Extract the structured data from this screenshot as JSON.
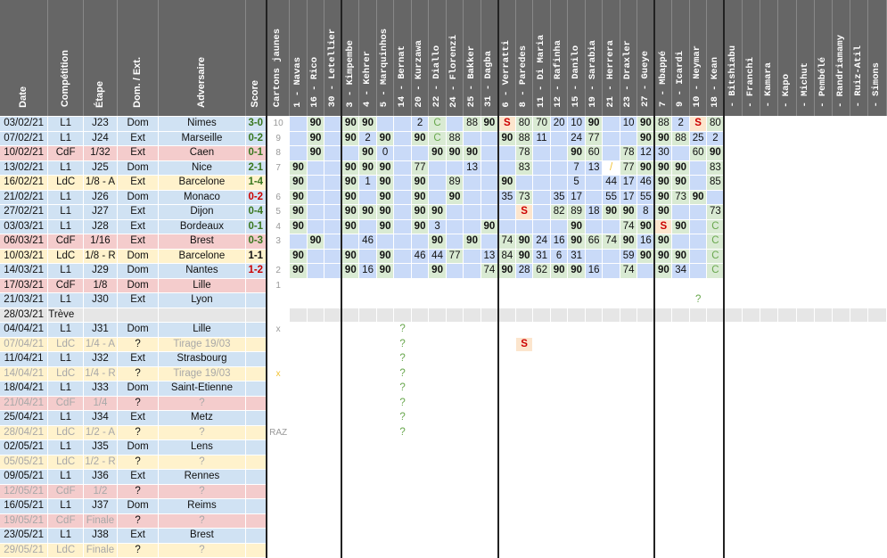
{
  "colors": {
    "header_bg": "#666666",
    "header_text": "#ffffff",
    "row_L1": "#d0e2f3",
    "row_CdF": "#f4cccc",
    "row_LdC": "#fff2cc",
    "row_break": "#e6e6e6",
    "dim_text": "#a8a8a8",
    "score_win": "#38761d",
    "score_loss": "#cc0000",
    "score_draw": "#111111",
    "cell_start": "#d9ead3",
    "cell_sub": "#fce5cd",
    "cell_susp": "#f4cccc",
    "cell_yellow": "#ffff00",
    "cell_blue": "#c9daf8",
    "cell_purple": "#d9d2e9",
    "text_green": "#6aa84f",
    "text_red": "#cc0000",
    "text_orange": "#f1c232",
    "text_muted": "#999999"
  },
  "headers": {
    "date": "Date",
    "competition": "Compétition",
    "stage": "Étape",
    "homeaway": "Dom. / Ext.",
    "opponent": "Adversaire",
    "score": "Score",
    "cards": "Cartons jaunes"
  },
  "players": [
    "1 - Navas",
    "16 - Rico",
    "30 - Letellier",
    "3 - Kimpembe",
    "4 - Kehrer",
    "5 - Marquinhos",
    "14 - Bernat",
    "20 - Kurzawa",
    "22 - Diallo",
    "24 - Florenzi",
    "25 - Bakker",
    "31 - Dagba",
    "6 - Verratti",
    "8 - Paredes",
    "11 - Di Maria",
    "12 - Rafinha",
    "15 - Danilo",
    "19 - Sarabia",
    "21 - Herrera",
    "23 - Draxler",
    "27 - Gueye",
    "7 - Mbappé",
    "9 - Icardi",
    "10 - Neymar",
    "18 - Kean",
    "- Bitshiabu",
    "- Franchi",
    "- Kamara",
    "- Kapo",
    "- Michut",
    "- Pembélé",
    "- Randriamamy",
    "- Ruiz-Atil",
    "- Simons"
  ],
  "matches": [
    {
      "date": "03/02/21",
      "comp": "L1",
      "stage": "J23",
      "ha": "Dom",
      "opp": "Nimes",
      "score": "3-0",
      "res": "W",
      "cards": "10",
      "cells": {
        "1": "90",
        "3": "90",
        "4": "90",
        "7": "2",
        "8": "C",
        "10": "88",
        "11": "90",
        "12": "S",
        "13": "80",
        "14": "70",
        "15": "20",
        "16": "10",
        "17": "90",
        "19": "10",
        "20": "90",
        "21": "88",
        "22": "2",
        "23": "S",
        "24": "80"
      }
    },
    {
      "date": "07/02/21",
      "comp": "L1",
      "stage": "J24",
      "ha": "Ext",
      "opp": "Marseille",
      "score": "0-2",
      "res": "W",
      "cards": "9",
      "cells": {
        "1": "90",
        "3": "90",
        "4": "2",
        "5": "90",
        "7": "90",
        "8": "C",
        "9": "88",
        "12": "90",
        "13": "88",
        "14": "11",
        "16": "24",
        "17": "77",
        "20": "90",
        "21": "90",
        "22": "88",
        "23": "25",
        "24": "2"
      }
    },
    {
      "date": "10/02/21",
      "comp": "CdF",
      "stage": "1/32",
      "ha": "Ext",
      "opp": "Caen",
      "score": "0-1",
      "res": "W",
      "cards": "8",
      "cells": {
        "1": "90",
        "4": "90",
        "5": "0",
        "8": "90",
        "9": "90",
        "10": "90",
        "13": "78",
        "16": "90",
        "17": "60",
        "19": "78",
        "20": "12",
        "21": "30",
        "23": "60",
        "24": "90"
      }
    },
    {
      "date": "13/02/21",
      "comp": "L1",
      "stage": "J25",
      "ha": "Dom",
      "opp": "Nice",
      "score": "2-1",
      "res": "W",
      "cards": "7",
      "cells": {
        "0": "90",
        "3": "90",
        "4": "90",
        "5": "90",
        "7": "77",
        "10": "13",
        "13": "83",
        "16": "7",
        "17": "13",
        "18": "/",
        "19": "77",
        "20": "90",
        "21": "90",
        "22": "90",
        "24": "83"
      }
    },
    {
      "date": "16/02/21",
      "comp": "LdC",
      "stage": "1/8 - A",
      "ha": "Ext",
      "opp": "Barcelone",
      "score": "1-4",
      "res": "W",
      "cards": "",
      "cells": {
        "0": "90",
        "3": "90",
        "4": "1",
        "5": "90",
        "7": "90",
        "9": "89",
        "12": "90",
        "16": "5",
        "18": "44",
        "19": "17",
        "20": "46",
        "21": "90",
        "22": "90",
        "24": "85"
      }
    },
    {
      "date": "21/02/21",
      "comp": "L1",
      "stage": "J26",
      "ha": "Dom",
      "opp": "Monaco",
      "score": "0-2",
      "res": "L",
      "cards": "6",
      "cells": {
        "0": "90",
        "3": "90",
        "5": "90",
        "7": "90",
        "9": "90",
        "12": "35",
        "13": "73",
        "15": "35",
        "16": "17",
        "18": "55",
        "19": "17",
        "20": "55",
        "21": "90",
        "22": "73",
        "23": "90"
      }
    },
    {
      "date": "27/02/21",
      "comp": "L1",
      "stage": "J27",
      "ha": "Ext",
      "opp": "Dijon",
      "score": "0-4",
      "res": "W",
      "cards": "5",
      "cells": {
        "0": "90",
        "3": "90",
        "4": "90",
        "5": "90",
        "7": "90",
        "8": "90",
        "13": "S",
        "15": "82",
        "16": "89",
        "17": "18",
        "18": "90",
        "19": "90",
        "20": "8",
        "21": "90",
        "24": "73"
      }
    },
    {
      "date": "03/03/21",
      "comp": "L1",
      "stage": "J28",
      "ha": "Ext",
      "opp": "Bordeaux",
      "score": "0-1",
      "res": "W",
      "cards": "4",
      "cells": {
        "0": "90",
        "3": "90",
        "5": "90",
        "7": "90",
        "8": "3",
        "11": "90",
        "16": "90",
        "19": "74",
        "20": "90",
        "21": "S",
        "22": "90",
        "24": "C"
      }
    },
    {
      "date": "06/03/21",
      "comp": "CdF",
      "stage": "1/16",
      "ha": "Ext",
      "opp": "Brest",
      "score": "0-3",
      "res": "W",
      "cards": "3",
      "cells": {
        "1": "90",
        "4": "46",
        "8": "90",
        "10": "90",
        "12": "74",
        "13": "90",
        "14": "24",
        "15": "16",
        "16": "90",
        "17": "66",
        "18": "74",
        "19": "90",
        "20": "16",
        "21": "90",
        "24": "C"
      }
    },
    {
      "date": "10/03/21",
      "comp": "LdC",
      "stage": "1/8 - R",
      "ha": "Dom",
      "opp": "Barcelone",
      "score": "1-1",
      "res": "D",
      "cards": "",
      "cells": {
        "0": "90",
        "3": "90",
        "5": "90",
        "7": "46",
        "8": "44",
        "9": "77",
        "11": "13",
        "12": "84",
        "13": "90",
        "14": "31",
        "15": "6",
        "16": "31",
        "19": "59",
        "20": "90",
        "21": "90",
        "22": "90",
        "24": "C"
      }
    },
    {
      "date": "14/03/21",
      "comp": "L1",
      "stage": "J29",
      "ha": "Dom",
      "opp": "Nantes",
      "score": "1-2",
      "res": "L",
      "cards": "2",
      "cells": {
        "0": "90",
        "3": "90",
        "4": "16",
        "5": "90",
        "8": "90",
        "11": "74",
        "12": "90",
        "13": "28",
        "14": "62",
        "15": "90",
        "16": "90",
        "17": "16",
        "19": "74",
        "21": "90",
        "22": "34",
        "24": "C"
      }
    },
    {
      "date": "17/03/21",
      "comp": "CdF",
      "stage": "1/8",
      "ha": "Dom",
      "opp": "Lille",
      "score": "",
      "res": "",
      "cards": "1",
      "cells": {}
    },
    {
      "date": "21/03/21",
      "comp": "L1",
      "stage": "J30",
      "ha": "Ext",
      "opp": "Lyon",
      "score": "",
      "res": "",
      "cards": "",
      "cells": {
        "23": "?"
      }
    },
    {
      "date": "28/03/21",
      "comp": "Trève",
      "stage": "",
      "ha": "",
      "opp": "",
      "score": "",
      "res": "",
      "cards": "",
      "cells": {}
    },
    {
      "date": "04/04/21",
      "comp": "L1",
      "stage": "J31",
      "ha": "Dom",
      "opp": "Lille",
      "score": "",
      "res": "",
      "cards": "x",
      "cells": {
        "6": "?"
      }
    },
    {
      "date": "07/04/21",
      "comp": "LdC",
      "stage": "1/4 - A",
      "ha": "?",
      "opp": "Tirage 19/03",
      "score": "",
      "res": "",
      "cards": "",
      "cells": {
        "6": "?",
        "13": "S"
      }
    },
    {
      "date": "11/04/21",
      "comp": "L1",
      "stage": "J32",
      "ha": "Ext",
      "opp": "Strasbourg",
      "score": "",
      "res": "",
      "cards": "",
      "cells": {
        "6": "?"
      }
    },
    {
      "date": "14/04/21",
      "comp": "LdC",
      "stage": "1/4 - R",
      "ha": "?",
      "opp": "Tirage 19/03",
      "score": "",
      "res": "",
      "cards": "x",
      "cells": {
        "6": "?"
      }
    },
    {
      "date": "18/04/21",
      "comp": "L1",
      "stage": "J33",
      "ha": "Dom",
      "opp": "Saint-Etienne",
      "score": "",
      "res": "",
      "cards": "",
      "cells": {
        "6": "?"
      }
    },
    {
      "date": "21/04/21",
      "comp": "CdF",
      "stage": "1/4",
      "ha": "?",
      "opp": "?",
      "score": "",
      "res": "",
      "cards": "",
      "cells": {
        "6": "?"
      }
    },
    {
      "date": "25/04/21",
      "comp": "L1",
      "stage": "J34",
      "ha": "Ext",
      "opp": "Metz",
      "score": "",
      "res": "",
      "cards": "",
      "cells": {
        "6": "?"
      }
    },
    {
      "date": "28/04/21",
      "comp": "LdC",
      "stage": "1/2 - A",
      "ha": "?",
      "opp": "?",
      "score": "",
      "res": "",
      "cards": "RAZ",
      "cells": {
        "6": "?"
      }
    },
    {
      "date": "02/05/21",
      "comp": "L1",
      "stage": "J35",
      "ha": "Dom",
      "opp": "Lens",
      "score": "",
      "res": "",
      "cards": "",
      "cells": {}
    },
    {
      "date": "05/05/21",
      "comp": "LdC",
      "stage": "1/2 - R",
      "ha": "?",
      "opp": "?",
      "score": "",
      "res": "",
      "cards": "",
      "cells": {}
    },
    {
      "date": "09/05/21",
      "comp": "L1",
      "stage": "J36",
      "ha": "Ext",
      "opp": "Rennes",
      "score": "",
      "res": "",
      "cards": "",
      "cells": {}
    },
    {
      "date": "12/05/21",
      "comp": "CdF",
      "stage": "1/2",
      "ha": "?",
      "opp": "?",
      "score": "",
      "res": "",
      "cards": "",
      "cells": {}
    },
    {
      "date": "16/05/21",
      "comp": "L1",
      "stage": "J37",
      "ha": "Dom",
      "opp": "Reims",
      "score": "",
      "res": "",
      "cards": "",
      "cells": {}
    },
    {
      "date": "19/05/21",
      "comp": "CdF",
      "stage": "Finale",
      "ha": "?",
      "opp": "?",
      "score": "",
      "res": "",
      "cards": "",
      "cells": {}
    },
    {
      "date": "23/05/21",
      "comp": "L1",
      "stage": "J38",
      "ha": "Ext",
      "opp": "Brest",
      "score": "",
      "res": "",
      "cards": "",
      "cells": {}
    },
    {
      "date": "29/05/21",
      "comp": "LdC",
      "stage": "Finale",
      "ha": "?",
      "opp": "?",
      "score": "",
      "res": "",
      "cards": "",
      "cells": {}
    }
  ]
}
